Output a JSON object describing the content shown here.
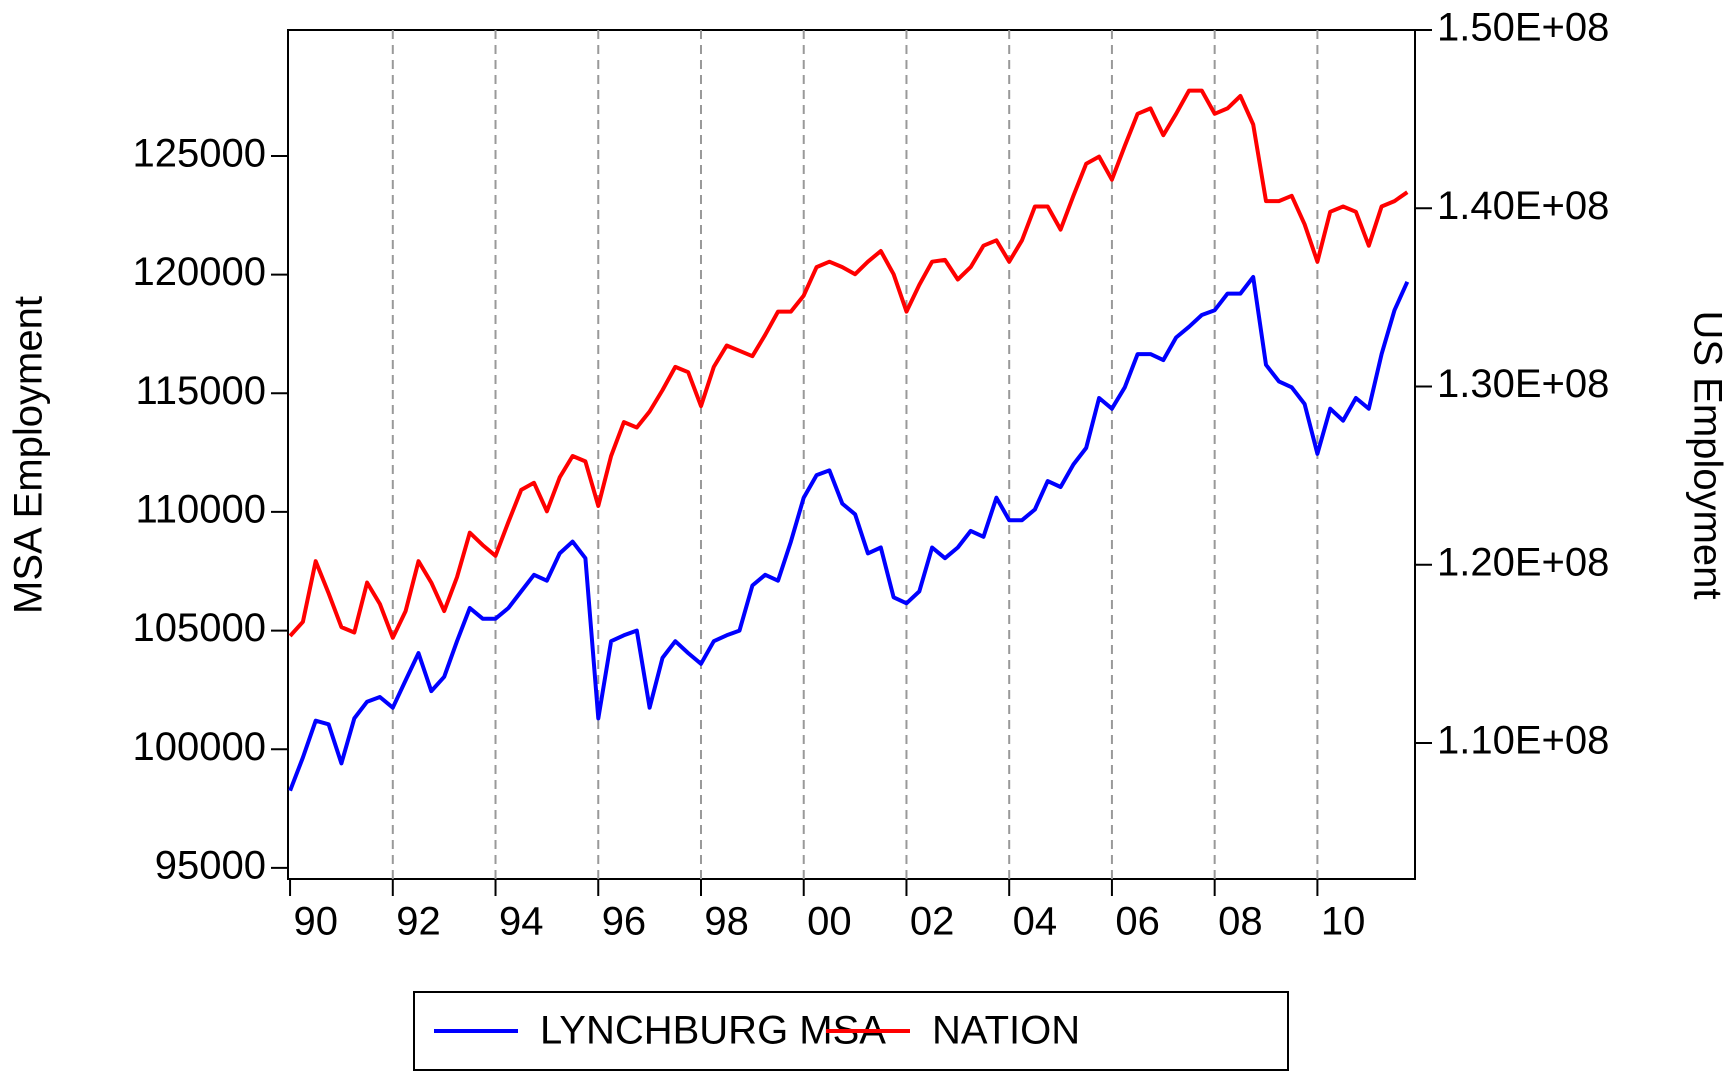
{
  "chart_data": {
    "type": "line",
    "x": [
      1990.0,
      1990.25,
      1990.5,
      1990.75,
      1991.0,
      1991.25,
      1991.5,
      1991.75,
      1992.0,
      1992.25,
      1992.5,
      1992.75,
      1993.0,
      1993.25,
      1993.5,
      1993.75,
      1994.0,
      1994.25,
      1994.5,
      1994.75,
      1995.0,
      1995.25,
      1995.5,
      1995.75,
      1996.0,
      1996.25,
      1996.5,
      1996.75,
      1997.0,
      1997.25,
      1997.5,
      1997.75,
      1998.0,
      1998.25,
      1998.5,
      1998.75,
      1999.0,
      1999.25,
      1999.5,
      1999.75,
      2000.0,
      2000.25,
      2000.5,
      2000.75,
      2001.0,
      2001.25,
      2001.5,
      2001.75,
      2002.0,
      2002.25,
      2002.5,
      2002.75,
      2003.0,
      2003.25,
      2003.5,
      2003.75,
      2004.0,
      2004.25,
      2004.5,
      2004.75,
      2005.0,
      2005.25,
      2005.5,
      2005.75,
      2006.0,
      2006.25,
      2006.5,
      2006.75,
      2007.0,
      2007.25,
      2007.5,
      2007.75,
      2008.0,
      2008.25,
      2008.5,
      2008.75,
      2009.0,
      2009.25,
      2009.5,
      2009.75,
      2010.0,
      2010.25,
      2010.5,
      2010.75,
      2011.0,
      2011.25,
      2011.5,
      2011.75
    ],
    "series": [
      {
        "name": "LYNCHBURG MSA",
        "color": "#0000ff",
        "axis": "y",
        "values": [
          98250,
          99650,
          101200,
          101050,
          99400,
          101300,
          102000,
          102200,
          101750,
          102900,
          104050,
          102450,
          103050,
          104550,
          105950,
          105500,
          105500,
          105950,
          106650,
          107350,
          107100,
          108250,
          108750,
          108050,
          101300,
          104550,
          104800,
          105000,
          101750,
          103850,
          104550,
          104050,
          103600,
          104550,
          104800,
          105000,
          106900,
          107350,
          107100,
          108750,
          110600,
          111550,
          111750,
          110350,
          109900,
          108250,
          108500,
          106400,
          106150,
          106650,
          108500,
          108050,
          108500,
          109200,
          108950,
          110600,
          109650,
          109650,
          110100,
          111300,
          111050,
          112000,
          112700,
          114800,
          114350,
          115250,
          116650,
          116650,
          116400,
          117350,
          117800,
          118300,
          118500,
          119200,
          119200,
          119900,
          116200,
          115500,
          115250,
          114550,
          112450,
          114350,
          113850,
          114800,
          114350,
          116650,
          118500,
          119700
        ]
      },
      {
        "name": "NATION",
        "color": "#ff0000",
        "axis": "y2",
        "values": [
          116000000,
          116800000,
          120200000,
          118400000,
          116500000,
          116200000,
          119000000,
          117800000,
          115900000,
          117400000,
          120200000,
          119000000,
          117400000,
          119300000,
          121800000,
          121100000,
          120500000,
          122400000,
          124200000,
          124600000,
          123000000,
          124900000,
          126100000,
          125800000,
          123300000,
          126100000,
          128000000,
          127700000,
          128600000,
          129800000,
          131100000,
          130800000,
          128900000,
          131100000,
          132300000,
          132000000,
          131700000,
          132900000,
          134200000,
          134200000,
          135100000,
          136700000,
          137000000,
          136700000,
          136300000,
          137000000,
          137600000,
          136300000,
          134200000,
          135700000,
          137000000,
          137100000,
          136000000,
          136700000,
          137900000,
          138200000,
          137000000,
          138200000,
          140100000,
          140100000,
          138800000,
          140700000,
          142500000,
          142900000,
          141600000,
          143500000,
          145300000,
          145600000,
          144100000,
          145300000,
          146600000,
          146600000,
          145300000,
          145600000,
          146300000,
          144700000,
          140400000,
          140400000,
          140700000,
          139100000,
          137000000,
          139800000,
          140100000,
          139800000,
          137900000,
          140100000,
          140400000,
          140900000
        ]
      }
    ],
    "y_label": "MSA Employment",
    "y2_label": "US Employment",
    "xlim": [
      1989.96,
      2011.9
    ],
    "xticks": [
      {
        "value": 1990,
        "label": "90"
      },
      {
        "value": 1992,
        "label": "92"
      },
      {
        "value": 1994,
        "label": "94"
      },
      {
        "value": 1996,
        "label": "96"
      },
      {
        "value": 1998,
        "label": "98"
      },
      {
        "value": 2000,
        "label": "00"
      },
      {
        "value": 2002,
        "label": "02"
      },
      {
        "value": 2004,
        "label": "04"
      },
      {
        "value": 2006,
        "label": "06"
      },
      {
        "value": 2008,
        "label": "08"
      },
      {
        "value": 2010,
        "label": "10"
      }
    ],
    "ylim": [
      94530,
      130310
    ],
    "yticks": [
      95000,
      100000,
      105000,
      110000,
      115000,
      120000,
      125000
    ],
    "y2lim": [
      102370000,
      150000000
    ],
    "y2ticks": [
      {
        "value": 110000000,
        "label": "1.10E+08"
      },
      {
        "value": 120000000,
        "label": "1.20E+08"
      },
      {
        "value": 130000000,
        "label": "1.30E+08"
      },
      {
        "value": 140000000,
        "label": "1.40E+08"
      },
      {
        "value": 150000000,
        "label": "1.50E+08"
      }
    ],
    "grid": true,
    "legend": "bottom"
  }
}
